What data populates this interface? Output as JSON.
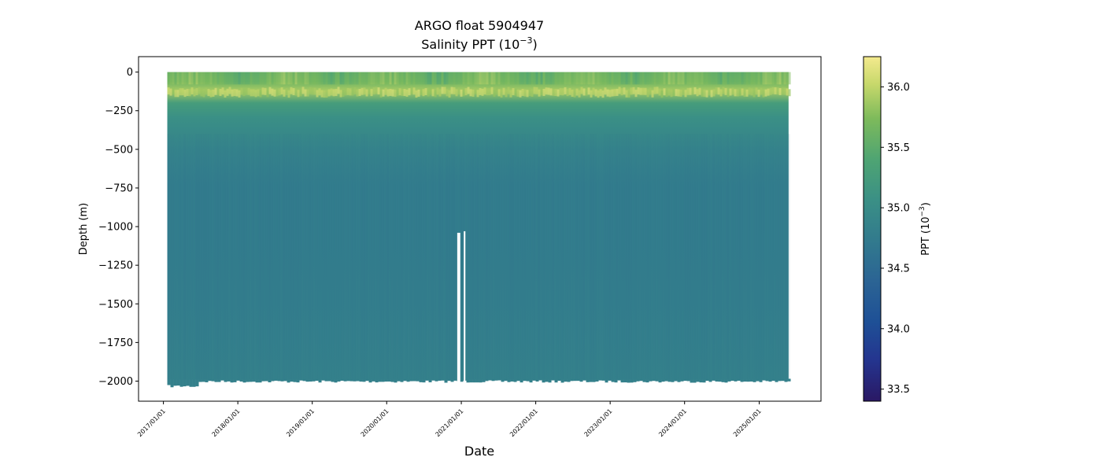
{
  "chart_data": {
    "type": "heatmap",
    "title_line1": "ARGO float 5904947",
    "title_line2_main": "Salinity PPT (10",
    "title_line2_exp": "−3",
    "title_line2_end": ")",
    "xlabel": "Date",
    "ylabel": "Depth (m)",
    "x_range": [
      "2016-09-01",
      "2025-10-31"
    ],
    "x_data_extent": [
      "2017-01-20",
      "2025-05-25"
    ],
    "ylim": [
      -2130,
      100
    ],
    "x_ticks": [
      "2017/01/01",
      "2018/01/01",
      "2019/01/01",
      "2020/01/01",
      "2021/01/01",
      "2022/01/01",
      "2023/01/01",
      "2024/01/01",
      "2025/01/01"
    ],
    "y_ticks": [
      {
        "value": 0,
        "label": "0"
      },
      {
        "value": -250,
        "label": "−250"
      },
      {
        "value": -500,
        "label": "−500"
      },
      {
        "value": -750,
        "label": "−750"
      },
      {
        "value": -1000,
        "label": "−1000"
      },
      {
        "value": -1250,
        "label": "−1250"
      },
      {
        "value": -1500,
        "label": "−1500"
      },
      {
        "value": -1750,
        "label": "−1750"
      },
      {
        "value": -2000,
        "label": "−2000"
      }
    ],
    "colorbar": {
      "label_main": "PPT (10",
      "label_exp": "−3",
      "label_end": ")",
      "min": 33.4,
      "max": 36.25,
      "ticks": [
        {
          "value": 33.5,
          "label": "33.5"
        },
        {
          "value": 34.0,
          "label": "34.0"
        },
        {
          "value": 34.5,
          "label": "34.5"
        },
        {
          "value": 35.0,
          "label": "35.0"
        },
        {
          "value": 35.5,
          "label": "35.5"
        },
        {
          "value": 36.0,
          "label": "36.0"
        }
      ],
      "colormap": "haline"
    },
    "depth_profile": [
      {
        "depth": 0,
        "salinity": 35.2
      },
      {
        "depth": -60,
        "salinity": 35.3
      },
      {
        "depth": -120,
        "salinity": 35.6
      },
      {
        "depth": -200,
        "salinity": 35.0
      },
      {
        "depth": -300,
        "salinity": 34.85
      },
      {
        "depth": -500,
        "salinity": 34.7
      },
      {
        "depth": -750,
        "salinity": 34.62
      },
      {
        "depth": -1000,
        "salinity": 34.62
      },
      {
        "depth": -1500,
        "salinity": 34.64
      },
      {
        "depth": -2000,
        "salinity": 34.68
      }
    ],
    "gaps": [
      {
        "start": "2020-12-12",
        "end": "2020-12-27",
        "from_depth": -1040,
        "to_depth": -2020
      },
      {
        "start": "2021-01-13",
        "end": "2021-01-21",
        "from_depth": -1030,
        "to_depth": -2020
      }
    ],
    "bottom_depth": -1990
  }
}
